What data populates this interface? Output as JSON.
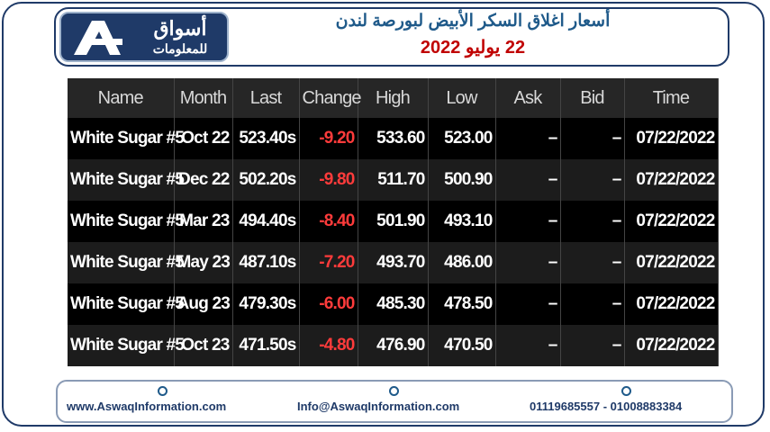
{
  "header": {
    "logo_arabic": "أسواق",
    "logo_arabic_sub": "للمعلومات",
    "title": "أسعار اغلاق السكر الأبيض لبورصة لندن",
    "date": "22 يوليو 2022"
  },
  "table": {
    "columns": [
      "Name",
      "Month",
      "Last",
      "Change",
      "High",
      "Low",
      "Ask",
      "Bid",
      "Time"
    ],
    "rows": [
      [
        "White Sugar #5",
        "Oct 22",
        "523.40s",
        "-9.20",
        "533.60",
        "523.00",
        "–",
        "–",
        "07/22/2022"
      ],
      [
        "White Sugar #5",
        "Dec 22",
        "502.20s",
        "-9.80",
        "511.70",
        "500.90",
        "–",
        "–",
        "07/22/2022"
      ],
      [
        "White Sugar #5",
        "Mar 23",
        "494.40s",
        "-8.40",
        "501.90",
        "493.10",
        "–",
        "–",
        "07/22/2022"
      ],
      [
        "White Sugar #5",
        "May 23",
        "487.10s",
        "-7.20",
        "493.70",
        "486.00",
        "–",
        "–",
        "07/22/2022"
      ],
      [
        "White Sugar #5",
        "Aug 23",
        "479.30s",
        "-6.00",
        "485.30",
        "478.50",
        "–",
        "–",
        "07/22/2022"
      ],
      [
        "White Sugar #5",
        "Oct 23",
        "471.50s",
        "-4.80",
        "476.90",
        "470.50",
        "–",
        "–",
        "07/22/2022"
      ]
    ]
  },
  "footer": {
    "website": "www.AswaqInformation.com",
    "email": "Info@AswaqInformation.com",
    "phones": "01119685557 - 01008883384"
  }
}
